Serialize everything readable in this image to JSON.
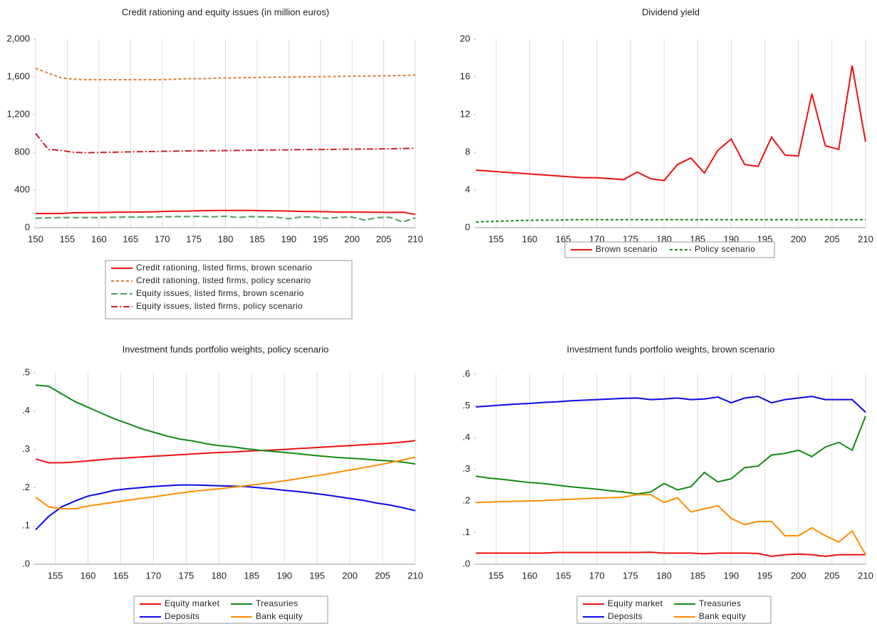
{
  "chart_data": [
    {
      "type": "line",
      "title": "Credit rationing and equity issues (in million euros)",
      "x": [
        150,
        152,
        154,
        156,
        158,
        160,
        162,
        164,
        166,
        168,
        170,
        172,
        174,
        176,
        178,
        180,
        182,
        184,
        186,
        188,
        190,
        192,
        194,
        196,
        198,
        200,
        202,
        204,
        206,
        208,
        210
      ],
      "xlim": [
        150,
        210
      ],
      "xticks": [
        150,
        155,
        160,
        165,
        170,
        175,
        180,
        185,
        190,
        195,
        200,
        205,
        210
      ],
      "ylim": [
        0,
        2000
      ],
      "yticks": [
        0,
        400,
        800,
        {
          "value": 1200,
          "label": "1,200"
        },
        {
          "value": 1600,
          "label": "1,600"
        },
        {
          "value": 2000,
          "label": "2,000"
        }
      ],
      "grid": "x",
      "legend": "bottom",
      "legend_columns": 1,
      "series": [
        {
          "name": "Credit rationing, listed firms, brown scenario",
          "color": "#ee1111",
          "style": "solid",
          "values": [
            150,
            150,
            150,
            158,
            160,
            160,
            163,
            165,
            165,
            168,
            172,
            175,
            176,
            180,
            182,
            183,
            183,
            183,
            180,
            178,
            176,
            172,
            172,
            170,
            165,
            165,
            165,
            163,
            162,
            165,
            140
          ]
        },
        {
          "name": "Credit rationing, listed firms, policy scenario",
          "color": "#e07b39",
          "style": "dashed",
          "values": [
            1690,
            1640,
            1590,
            1575,
            1570,
            1570,
            1570,
            1570,
            1570,
            1570,
            1570,
            1575,
            1580,
            1580,
            1585,
            1588,
            1590,
            1592,
            1595,
            1597,
            1598,
            1600,
            1602,
            1603,
            1605,
            1607,
            1608,
            1610,
            1612,
            1614,
            1620
          ]
        },
        {
          "name": "Equity issues, listed firms, brown scenario",
          "color": "#4a9e5c",
          "style": "longdash",
          "values": [
            100,
            105,
            108,
            108,
            108,
            108,
            110,
            112,
            112,
            112,
            115,
            118,
            118,
            120,
            115,
            122,
            108,
            118,
            115,
            112,
            95,
            115,
            112,
            100,
            110,
            112,
            80,
            108,
            110,
            60,
            105
          ]
        },
        {
          "name": "Equity issues, listed firms, policy scenario",
          "color": "#c8232c",
          "style": "dashdot",
          "values": [
            1000,
            830,
            820,
            800,
            795,
            798,
            800,
            803,
            806,
            808,
            810,
            812,
            814,
            815,
            817,
            818,
            820,
            822,
            823,
            825,
            826,
            828,
            829,
            830,
            832,
            833,
            834,
            836,
            838,
            840,
            842
          ]
        }
      ]
    },
    {
      "type": "line",
      "title": "Dividend yield",
      "x": [
        152,
        154,
        156,
        158,
        160,
        162,
        164,
        166,
        168,
        170,
        172,
        174,
        176,
        178,
        180,
        182,
        184,
        186,
        188,
        190,
        192,
        194,
        196,
        198,
        200,
        202,
        204,
        206,
        208,
        210
      ],
      "xlim": [
        152,
        210
      ],
      "xticks": [
        155,
        160,
        165,
        170,
        175,
        180,
        185,
        190,
        195,
        200,
        205,
        210
      ],
      "ylim": [
        0,
        20
      ],
      "yticks": [
        0,
        4,
        8,
        12,
        16,
        20
      ],
      "grid": "x",
      "legend": "bottom",
      "legend_columns": 2,
      "series": [
        {
          "name": "Brown scenario",
          "color": "#ee1111",
          "style": "solid",
          "values": [
            6.1,
            6.0,
            5.9,
            5.8,
            5.7,
            5.6,
            5.5,
            5.4,
            5.3,
            5.3,
            5.2,
            5.1,
            5.9,
            5.2,
            5.0,
            6.7,
            7.4,
            5.8,
            8.2,
            9.4,
            6.7,
            6.5,
            9.6,
            7.7,
            7.6,
            14.2,
            8.7,
            8.3,
            17.2,
            9.1
          ]
        },
        {
          "name": "Policy scenario",
          "color": "#1a8a1a",
          "style": "dashed",
          "values": [
            0.6,
            0.65,
            0.7,
            0.75,
            0.78,
            0.8,
            0.8,
            0.85,
            0.85,
            0.85,
            0.85,
            0.85,
            0.85,
            0.85,
            0.85,
            0.85,
            0.85,
            0.85,
            0.85,
            0.85,
            0.85,
            0.85,
            0.85,
            0.85,
            0.85,
            0.85,
            0.85,
            0.85,
            0.85,
            0.85
          ]
        }
      ]
    },
    {
      "type": "line",
      "title": "Investment funds portfolio weights, policy scenario",
      "x": [
        152,
        154,
        156,
        158,
        160,
        162,
        164,
        166,
        168,
        170,
        172,
        174,
        176,
        178,
        180,
        182,
        184,
        186,
        188,
        190,
        192,
        194,
        196,
        198,
        200,
        202,
        204,
        206,
        208,
        210
      ],
      "xlim": [
        152,
        210
      ],
      "xticks": [
        155,
        160,
        165,
        170,
        175,
        180,
        185,
        190,
        195,
        200,
        205,
        210
      ],
      "ylim": [
        0,
        0.5
      ],
      "yticks": [
        {
          "value": 0,
          "label": ".0"
        },
        {
          "value": 0.1,
          "label": ".1"
        },
        {
          "value": 0.2,
          "label": ".2"
        },
        {
          "value": 0.3,
          "label": ".3"
        },
        {
          "value": 0.4,
          "label": ".4"
        },
        {
          "value": 0.5,
          "label": ".5"
        }
      ],
      "grid": "x",
      "legend": "bottom",
      "legend_columns": 2,
      "series": [
        {
          "name": "Equity market",
          "color": "#ee1111",
          "style": "solid",
          "values": [
            0.275,
            0.265,
            0.265,
            0.267,
            0.27,
            0.273,
            0.276,
            0.278,
            0.28,
            0.282,
            0.284,
            0.286,
            0.288,
            0.29,
            0.292,
            0.293,
            0.295,
            0.297,
            0.298,
            0.3,
            0.302,
            0.304,
            0.306,
            0.308,
            0.31,
            0.312,
            0.314,
            0.316,
            0.319,
            0.323
          ]
        },
        {
          "name": "Treasuries",
          "color": "#138a13",
          "style": "solid",
          "values": [
            0.468,
            0.465,
            0.445,
            0.425,
            0.41,
            0.395,
            0.38,
            0.368,
            0.355,
            0.345,
            0.335,
            0.327,
            0.322,
            0.315,
            0.31,
            0.307,
            0.302,
            0.298,
            0.295,
            0.292,
            0.289,
            0.285,
            0.282,
            0.279,
            0.277,
            0.275,
            0.272,
            0.27,
            0.267,
            0.262
          ]
        },
        {
          "name": "Deposits",
          "color": "#0a0ae6",
          "style": "solid",
          "values": [
            0.09,
            0.125,
            0.15,
            0.165,
            0.178,
            0.185,
            0.193,
            0.197,
            0.2,
            0.203,
            0.205,
            0.207,
            0.207,
            0.206,
            0.205,
            0.204,
            0.203,
            0.2,
            0.197,
            0.193,
            0.19,
            0.186,
            0.182,
            0.177,
            0.172,
            0.167,
            0.16,
            0.155,
            0.148,
            0.14
          ]
        },
        {
          "name": "Bank equity",
          "color": "#ff8c00",
          "style": "solid",
          "values": [
            0.175,
            0.15,
            0.145,
            0.145,
            0.152,
            0.157,
            0.162,
            0.167,
            0.172,
            0.176,
            0.181,
            0.186,
            0.19,
            0.194,
            0.197,
            0.201,
            0.205,
            0.209,
            0.213,
            0.218,
            0.223,
            0.229,
            0.234,
            0.24,
            0.246,
            0.252,
            0.258,
            0.265,
            0.272,
            0.28
          ]
        }
      ]
    },
    {
      "type": "line",
      "title": "Investment funds portfolio weights, brown scenario",
      "x": [
        152,
        154,
        156,
        158,
        160,
        162,
        164,
        166,
        168,
        170,
        172,
        174,
        176,
        178,
        180,
        182,
        184,
        186,
        188,
        190,
        192,
        194,
        196,
        198,
        200,
        202,
        204,
        206,
        208,
        210
      ],
      "xlim": [
        152,
        210
      ],
      "xticks": [
        155,
        160,
        165,
        170,
        175,
        180,
        185,
        190,
        195,
        200,
        205,
        210
      ],
      "ylim": [
        0,
        0.6
      ],
      "yticks": [
        {
          "value": 0,
          "label": ".0"
        },
        {
          "value": 0.1,
          "label": ".1"
        },
        {
          "value": 0.2,
          "label": ".2"
        },
        {
          "value": 0.3,
          "label": ".3"
        },
        {
          "value": 0.4,
          "label": ".4"
        },
        {
          "value": 0.5,
          "label": ".5"
        },
        {
          "value": 0.6,
          "label": ".6"
        }
      ],
      "grid": "x",
      "legend": "bottom",
      "legend_columns": 2,
      "series": [
        {
          "name": "Equity market",
          "color": "#ee1111",
          "style": "solid",
          "values": [
            0.035,
            0.035,
            0.035,
            0.035,
            0.035,
            0.035,
            0.037,
            0.037,
            0.037,
            0.037,
            0.037,
            0.037,
            0.037,
            0.038,
            0.035,
            0.035,
            0.035,
            0.033,
            0.035,
            0.035,
            0.035,
            0.034,
            0.025,
            0.03,
            0.032,
            0.03,
            0.025,
            0.03,
            0.03,
            0.03
          ]
        },
        {
          "name": "Treasuries",
          "color": "#138a13",
          "style": "solid",
          "values": [
            0.278,
            0.272,
            0.268,
            0.263,
            0.258,
            0.255,
            0.25,
            0.245,
            0.241,
            0.237,
            0.232,
            0.228,
            0.222,
            0.228,
            0.255,
            0.235,
            0.245,
            0.29,
            0.26,
            0.27,
            0.305,
            0.31,
            0.345,
            0.35,
            0.36,
            0.34,
            0.37,
            0.385,
            0.36,
            0.468
          ]
        },
        {
          "name": "Deposits",
          "color": "#0a0ae6",
          "style": "solid",
          "values": [
            0.497,
            0.5,
            0.503,
            0.506,
            0.508,
            0.511,
            0.513,
            0.516,
            0.518,
            0.52,
            0.522,
            0.524,
            0.525,
            0.52,
            0.522,
            0.525,
            0.52,
            0.522,
            0.528,
            0.51,
            0.525,
            0.53,
            0.51,
            0.52,
            0.525,
            0.53,
            0.52,
            0.52,
            0.52,
            0.48
          ]
        },
        {
          "name": "Bank equity",
          "color": "#ff8c00",
          "style": "solid",
          "values": [
            0.195,
            0.196,
            0.198,
            0.199,
            0.2,
            0.201,
            0.203,
            0.205,
            0.207,
            0.209,
            0.21,
            0.212,
            0.22,
            0.22,
            0.195,
            0.21,
            0.165,
            0.175,
            0.185,
            0.145,
            0.125,
            0.135,
            0.135,
            0.09,
            0.09,
            0.115,
            0.09,
            0.07,
            0.105,
            0.03
          ]
        }
      ]
    }
  ]
}
